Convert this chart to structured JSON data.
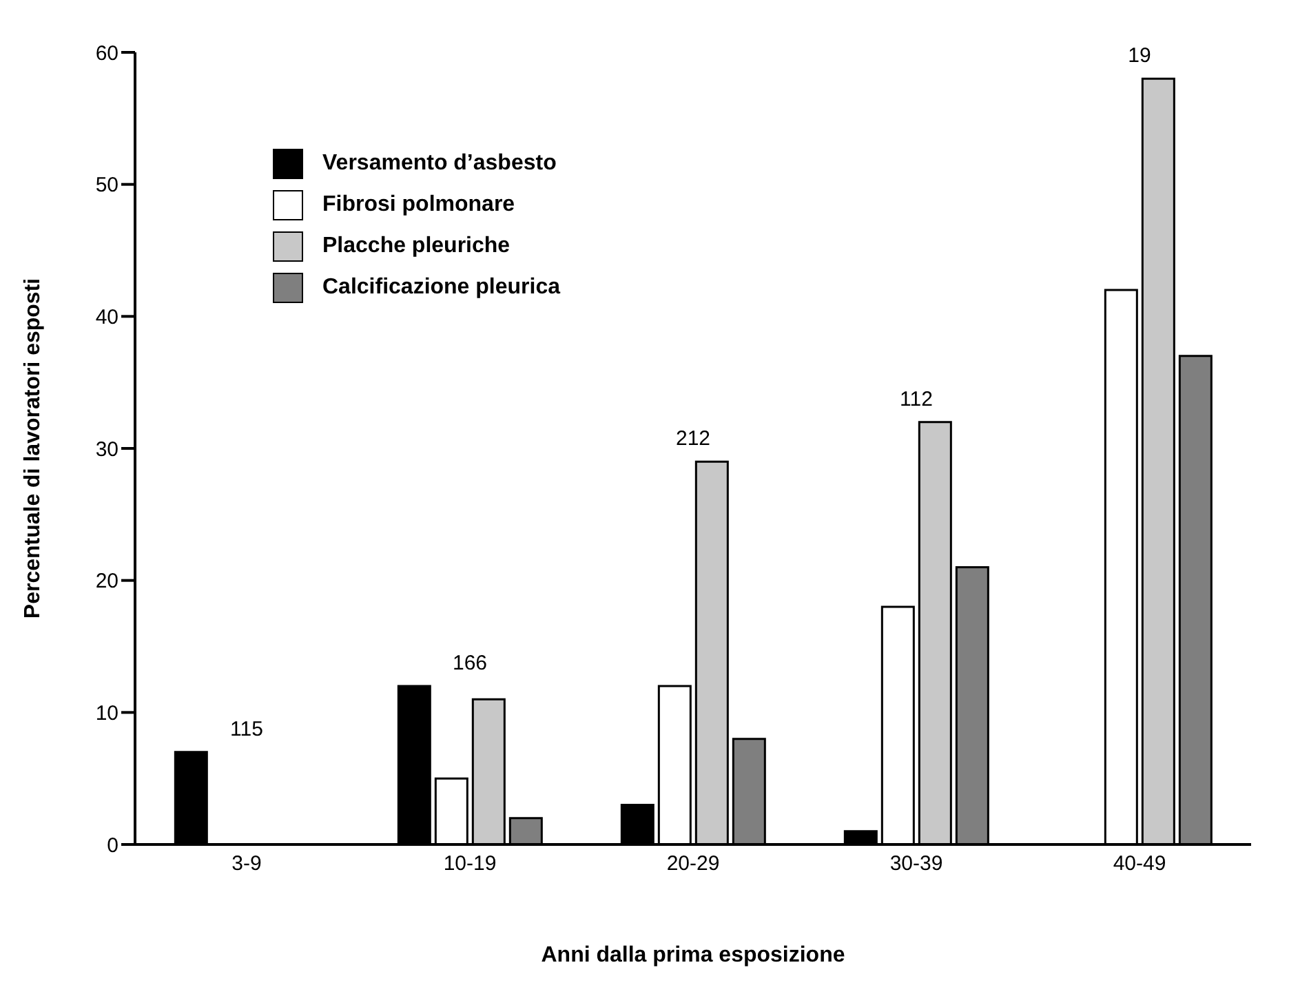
{
  "chart_data": {
    "type": "bar",
    "xlabel": "Anni dalla prima esposizione",
    "ylabel": "Percentuale di lavoratori esposti",
    "categories": [
      "3-9",
      "10-19",
      "20-29",
      "30-39",
      "40-49"
    ],
    "series": [
      {
        "name": "Versamento d’asbesto",
        "color": "#000000",
        "values": [
          7,
          12,
          3,
          1,
          0
        ]
      },
      {
        "name": "Fibrosi polmonare",
        "color": "#ffffff",
        "values": [
          0,
          5,
          12,
          18,
          42
        ]
      },
      {
        "name": "Placche pleuriche",
        "color": "#c8c8c8",
        "values": [
          0,
          11,
          29,
          32,
          58
        ]
      },
      {
        "name": "Calcificazione pleurica",
        "color": "#7f7f7f",
        "values": [
          0,
          2,
          8,
          21,
          37
        ]
      }
    ],
    "annotations": [
      "115",
      "166",
      "212",
      "112",
      "19"
    ],
    "ylim": [
      0,
      60
    ],
    "yticks": [
      0,
      10,
      20,
      30,
      40,
      50,
      60
    ],
    "grid": false,
    "legend": "top left"
  }
}
